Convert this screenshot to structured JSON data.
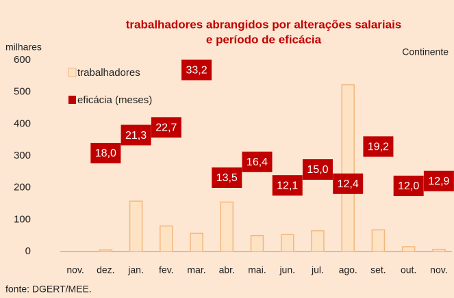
{
  "chart_data": {
    "type": "bar",
    "title": "trabalhadores abrangidos por alterações salariais",
    "subtitle": "e período de eficácia",
    "ylabel": "milhares",
    "annotation": "Continente",
    "source": "fonte: DGERT/MEE.",
    "categories": [
      "nov.",
      "dez.",
      "jan.",
      "fev.",
      "mar.",
      "abr.",
      "mai.",
      "jun.",
      "jul.",
      "ago.",
      "set.",
      "out.",
      "nov."
    ],
    "series": [
      {
        "name": "trabalhadores",
        "color": "#fde3c4",
        "values": [
          0,
          5,
          158,
          80,
          57,
          155,
          50,
          53,
          65,
          523,
          68,
          15,
          7
        ]
      },
      {
        "name": "eficácia (meses)",
        "color": "#c00000",
        "axis": "y2",
        "values": [
          null,
          18.0,
          21.3,
          22.7,
          33.2,
          13.5,
          16.4,
          12.1,
          15.0,
          12.4,
          19.2,
          12.0,
          12.9
        ],
        "value_labels": [
          null,
          "18,0",
          "21,3",
          "22,7",
          "33,2",
          "13,5",
          "16,4",
          "12,1",
          "15,0",
          "12,4",
          "19,2",
          "12,0",
          "12,9"
        ]
      }
    ],
    "ylim": [
      0,
      600
    ],
    "yticks": [
      0,
      100,
      200,
      300,
      400,
      500,
      600
    ],
    "y2lim": [
      0,
      35
    ],
    "grid": false,
    "legend": "upper left"
  }
}
